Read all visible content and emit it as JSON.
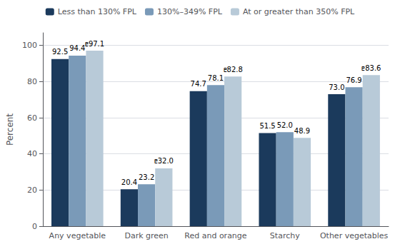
{
  "chart_data": {
    "type": "bar",
    "categories": [
      "Any vegetable",
      "Dark green",
      "Red and orange",
      "Starchy",
      "Other vegetables"
    ],
    "series": [
      {
        "name": "Less than 130% FPL",
        "color": "#1b3a5c",
        "values": [
          92.5,
          20.4,
          74.7,
          51.5,
          73.0
        ],
        "value_labels": [
          "92.5",
          "20.4",
          "74.7",
          "51.5",
          "73.0"
        ]
      },
      {
        "name": "130%–349% FPL",
        "color": "#7a9ab8",
        "values": [
          94.4,
          23.2,
          78.1,
          52.0,
          76.9
        ],
        "value_labels": [
          "94.4",
          "23.2",
          "78.1",
          "52.0",
          "76.9"
        ]
      },
      {
        "name": "At or greater than 350% FPL",
        "color": "#b8cad8",
        "values": [
          97.1,
          32.0,
          82.8,
          48.9,
          83.6
        ],
        "value_labels": [
          "ᥱ97.1",
          "ᥱ32.0",
          "ᥱ82.8",
          "48.9",
          "ᥱ83.6"
        ]
      }
    ],
    "ylabel": "Percent",
    "ylim": [
      0,
      107
    ],
    "yticks": [
      0,
      20,
      40,
      60,
      80,
      100
    ],
    "grid": true,
    "legend": "top",
    "data_labels": true
  }
}
